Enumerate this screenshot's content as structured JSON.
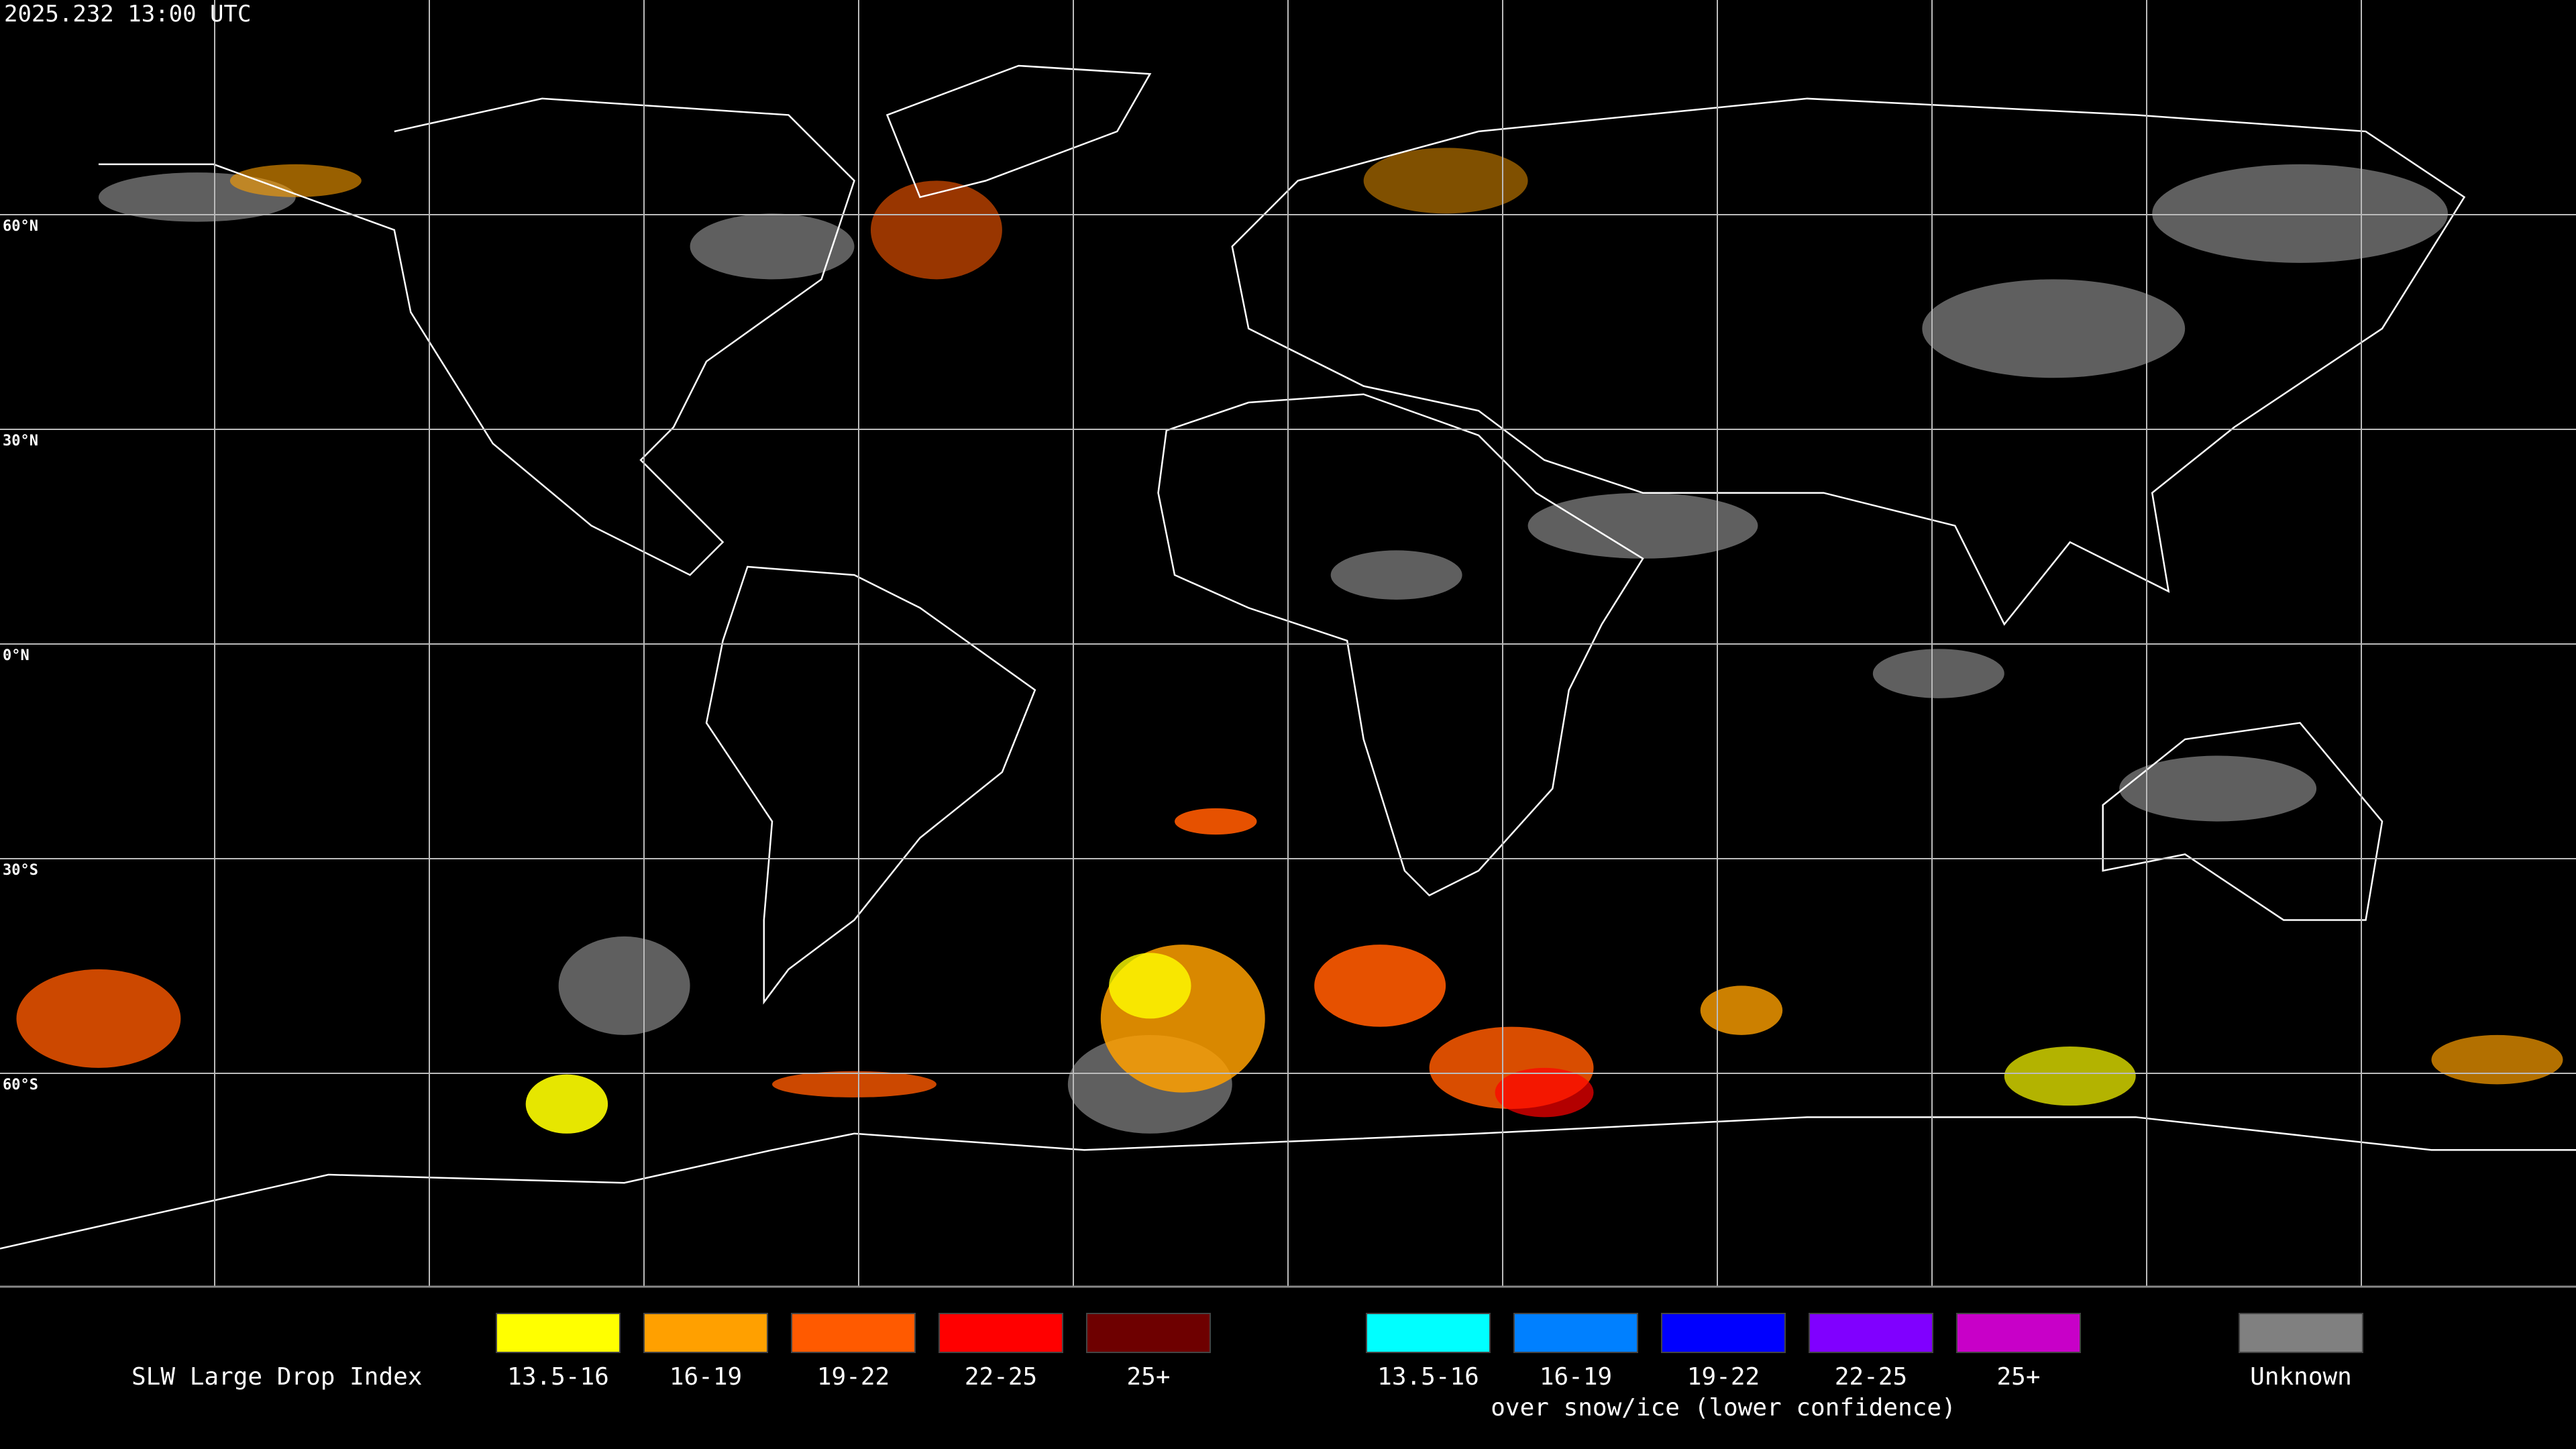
{
  "timestamp": "2025.232 13:00 UTC",
  "latitude_labels": [
    "60°N",
    "30°N",
    "0°N",
    "30°S",
    "60°S"
  ],
  "legend": {
    "title": "SLW Large Drop Index",
    "groups": [
      {
        "items": [
          {
            "label": "13.5-16",
            "color": "#ffff00"
          },
          {
            "label": "16-19",
            "color": "#ffa000"
          },
          {
            "label": "19-22",
            "color": "#ff5a00"
          },
          {
            "label": "22-25",
            "color": "#ff0000"
          },
          {
            "label": "25+",
            "color": "#6e0000"
          }
        ]
      },
      {
        "note": "over snow/ice (lower confidence)",
        "items": [
          {
            "label": "13.5-16",
            "color": "#00ffff"
          },
          {
            "label": "16-19",
            "color": "#0080ff"
          },
          {
            "label": "19-22",
            "color": "#0000ff"
          },
          {
            "label": "22-25",
            "color": "#8000ff"
          },
          {
            "label": "25+",
            "color": "#c800c8"
          }
        ]
      },
      {
        "items": [
          {
            "label": "Unknown",
            "color": "#808080"
          }
        ]
      }
    ]
  }
}
